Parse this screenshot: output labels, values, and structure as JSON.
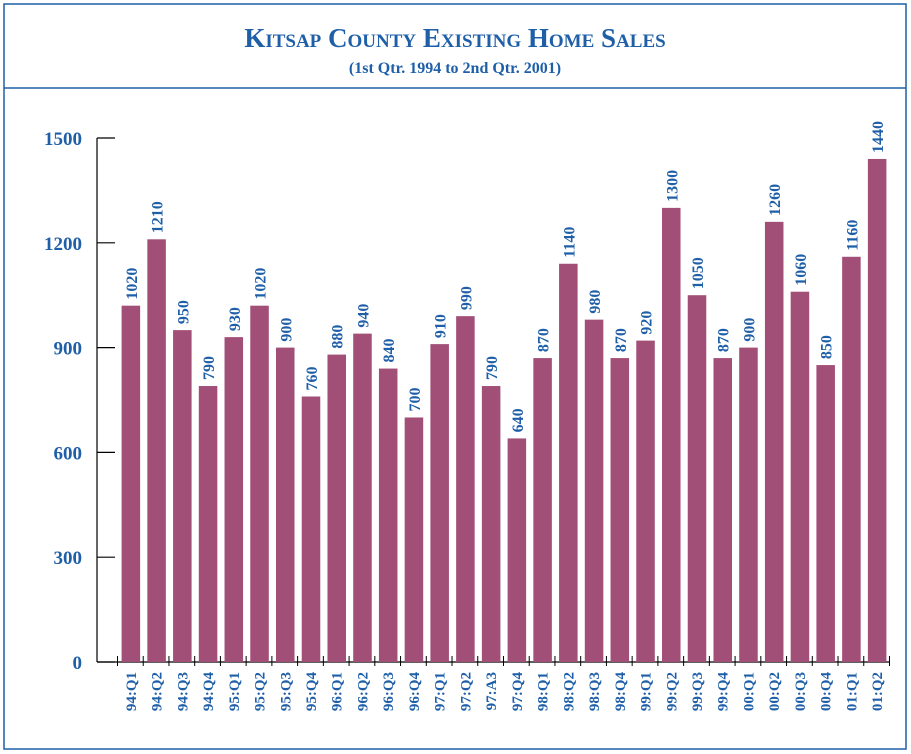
{
  "chart_data": {
    "type": "bar",
    "title": "Kitsap County Existing Home Sales",
    "subtitle": "(1st Qtr. 1994 to 2nd Qtr. 2001)",
    "categories": [
      "94:Q1",
      "94:Q2",
      "94:Q3",
      "94:Q4",
      "95:Q1",
      "95:Q2",
      "95:Q3",
      "95:Q4",
      "96:Q1",
      "96:Q2",
      "96:Q3",
      "96:Q4",
      "97:Q1",
      "97:Q2",
      "97:A3",
      "97:Q4",
      "98:Q1",
      "98:Q2",
      "98:Q3",
      "98:Q4",
      "99:Q1",
      "99:Q2",
      "99:Q3",
      "99:Q4",
      "00:Q1",
      "00:Q2",
      "00:Q3",
      "00:Q4",
      "01:Q1",
      "01:Q2"
    ],
    "values": [
      1020,
      1210,
      950,
      790,
      930,
      1020,
      900,
      760,
      880,
      940,
      840,
      700,
      910,
      990,
      790,
      640,
      870,
      1140,
      980,
      870,
      920,
      1300,
      1050,
      870,
      900,
      1260,
      1060,
      850,
      1160,
      1440
    ],
    "color": "#a24f78",
    "ylim": [
      0,
      1500
    ],
    "yticks": [
      0,
      300,
      600,
      900,
      1200,
      1500
    ],
    "grid": false
  }
}
